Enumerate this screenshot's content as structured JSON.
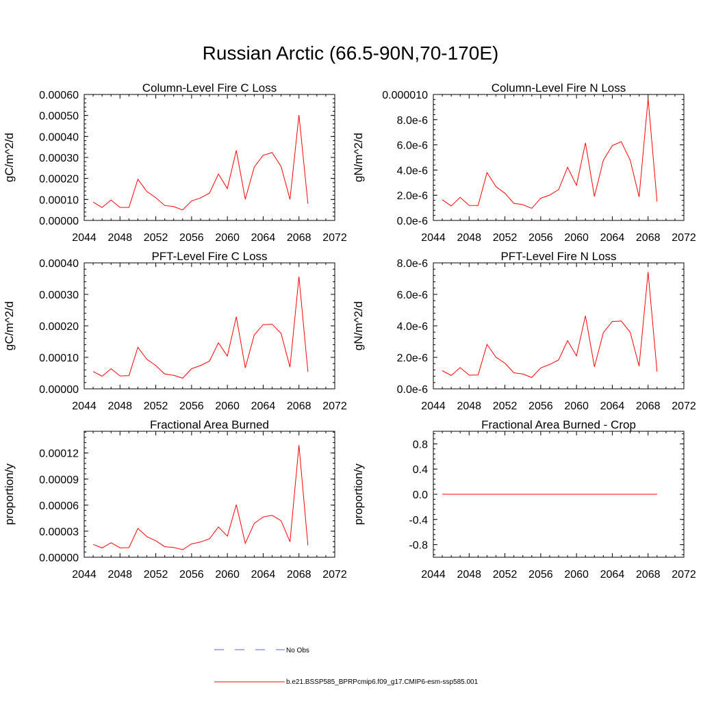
{
  "page": {
    "title": "Russian Arctic (66.5-90N,70-170E)"
  },
  "chart_data": [
    {
      "type": "line",
      "title": "Column-Level Fire C Loss",
      "ylabel": "gC/m^2/d",
      "xlim": [
        2044,
        2072
      ],
      "ylim": [
        0,
        0.0006
      ],
      "xticks": [
        "2044",
        "2048",
        "2052",
        "2056",
        "2060",
        "2064",
        "2068",
        "2072"
      ],
      "yticks": [
        "0.00000",
        "0.00010",
        "0.00020",
        "0.00030",
        "0.00040",
        "0.00050",
        "0.00060"
      ],
      "x": [
        2045,
        2046,
        2047,
        2048,
        2049,
        2050,
        2051,
        2052,
        2053,
        2054,
        2055,
        2056,
        2057,
        2058,
        2059,
        2060,
        2061,
        2062,
        2063,
        2064,
        2065,
        2066,
        2067,
        2068,
        2069
      ],
      "series": [
        {
          "color": "#ff0000",
          "values": [
            8.7e-05,
            6.2e-05,
            9.7e-05,
            6.2e-05,
            6.2e-05,
            0.000196,
            0.000138,
            0.000108,
            7.1e-05,
            6.6e-05,
            5e-05,
            9.3e-05,
            0.000107,
            0.00013,
            0.000221,
            0.000152,
            0.000334,
            0.000101,
            0.000254,
            0.00031,
            0.000323,
            0.000257,
            0.0001,
            0.000502,
            8e-05
          ]
        }
      ]
    },
    {
      "type": "line",
      "title": "Column-Level Fire N Loss",
      "ylabel": "gN/m^2/d",
      "xlim": [
        2044,
        2072
      ],
      "ylim": [
        0,
        1e-05
      ],
      "xticks": [
        "2044",
        "2048",
        "2052",
        "2056",
        "2060",
        "2064",
        "2068",
        "2072"
      ],
      "yticks": [
        "0.0e-6",
        "2.0e-6",
        "4.0e-6",
        "6.0e-6",
        "8.0e-6",
        "0.000010"
      ],
      "x": [
        2045,
        2046,
        2047,
        2048,
        2049,
        2050,
        2051,
        2052,
        2053,
        2054,
        2055,
        2056,
        2057,
        2058,
        2059,
        2060,
        2061,
        2062,
        2063,
        2064,
        2065,
        2066,
        2067,
        2068,
        2069
      ],
      "series": [
        {
          "color": "#ff0000",
          "values": [
            1.64e-06,
            1.15e-06,
            1.83e-06,
            1.19e-06,
            1.18e-06,
            3.8e-06,
            2.68e-06,
            2.16e-06,
            1.36e-06,
            1.25e-06,
            9.6e-07,
            1.76e-06,
            2.01e-06,
            2.45e-06,
            4.22e-06,
            2.79e-06,
            6.16e-06,
            1.9e-06,
            4.78e-06,
            5.94e-06,
            6.25e-06,
            4.78e-06,
            1.87e-06,
            9.68e-06,
            1.49e-06
          ]
        }
      ]
    },
    {
      "type": "line",
      "title": "PFT-Level Fire C Loss",
      "ylabel": "gC/m^2/d",
      "xlim": [
        2044,
        2072
      ],
      "ylim": [
        0,
        0.0004
      ],
      "xticks": [
        "2044",
        "2048",
        "2052",
        "2056",
        "2060",
        "2064",
        "2068",
        "2072"
      ],
      "yticks": [
        "0.00000",
        "0.00010",
        "0.00020",
        "0.00030",
        "0.00040"
      ],
      "x": [
        2045,
        2046,
        2047,
        2048,
        2049,
        2050,
        2051,
        2052,
        2053,
        2054,
        2055,
        2056,
        2057,
        2058,
        2059,
        2060,
        2061,
        2062,
        2063,
        2064,
        2065,
        2066,
        2067,
        2068,
        2069
      ],
      "series": [
        {
          "color": "#ff0000",
          "values": [
            5.5e-05,
            4e-05,
            6.4e-05,
            4.1e-05,
            4.2e-05,
            0.000132,
            9.4e-05,
            7.4e-05,
            4.7e-05,
            4.3e-05,
            3.4e-05,
            6.4e-05,
            7.4e-05,
            8.8e-05,
            0.000146,
            0.000104,
            0.000229,
            6.7e-05,
            0.000171,
            0.000204,
            0.000205,
            0.000176,
            6.9e-05,
            0.000356,
            5.4e-05
          ]
        }
      ]
    },
    {
      "type": "line",
      "title": "PFT-Level Fire N Loss",
      "ylabel": "gN/m^2/d",
      "xlim": [
        2044,
        2072
      ],
      "ylim": [
        0,
        8e-06
      ],
      "xticks": [
        "2044",
        "2048",
        "2052",
        "2056",
        "2060",
        "2064",
        "2068",
        "2072"
      ],
      "yticks": [
        "0.0e-6",
        "2.0e-6",
        "4.0e-6",
        "6.0e-6",
        "8.0e-6"
      ],
      "x": [
        2045,
        2046,
        2047,
        2048,
        2049,
        2050,
        2051,
        2052,
        2053,
        2054,
        2055,
        2056,
        2057,
        2058,
        2059,
        2060,
        2061,
        2062,
        2063,
        2064,
        2065,
        2066,
        2067,
        2068,
        2069
      ],
      "series": [
        {
          "color": "#ff0000",
          "values": [
            1.15e-06,
            8.5e-07,
            1.35e-06,
            8.7e-07,
            8.8e-07,
            2.82e-06,
            2.01e-06,
            1.63e-06,
            1.02e-06,
            9.4e-07,
            7.2e-07,
            1.33e-06,
            1.55e-06,
            1.84e-06,
            3.06e-06,
            2.09e-06,
            4.64e-06,
            1.4e-06,
            3.57e-06,
            4.28e-06,
            4.31e-06,
            3.59e-06,
            1.44e-06,
            7.42e-06,
            1.09e-06
          ]
        }
      ]
    },
    {
      "type": "line",
      "title": "Fractional Area Burned",
      "ylabel": "proportion/y",
      "xlim": [
        2044,
        2072
      ],
      "ylim": [
        0,
        0.000145
      ],
      "xticks": [
        "2044",
        "2048",
        "2052",
        "2056",
        "2060",
        "2064",
        "2068",
        "2072"
      ],
      "yticks": [
        "0.00000",
        "0.00003",
        "0.00006",
        "0.00009",
        "0.00012"
      ],
      "x": [
        2045,
        2046,
        2047,
        2048,
        2049,
        2050,
        2051,
        2052,
        2053,
        2054,
        2055,
        2056,
        2057,
        2058,
        2059,
        2060,
        2061,
        2062,
        2063,
        2064,
        2065,
        2066,
        2067,
        2068,
        2069
      ],
      "series": [
        {
          "color": "#ff0000",
          "values": [
            1.47e-05,
            1.07e-05,
            1.67e-05,
            1.09e-05,
            1.1e-05,
            3.32e-05,
            2.38e-05,
            1.9e-05,
            1.21e-05,
            1.13e-05,
            8.7e-06,
            1.54e-05,
            1.75e-05,
            2.12e-05,
            3.48e-05,
            2.43e-05,
            6.05e-05,
            1.6e-05,
            3.89e-05,
            4.63e-05,
            4.82e-05,
            4.2e-05,
            1.78e-05,
            0.000129,
            1.38e-05
          ]
        }
      ]
    },
    {
      "type": "line",
      "title": "Fractional Area Burned - Crop",
      "ylabel": "proportion/y",
      "xlim": [
        2044,
        2072
      ],
      "ylim": [
        -1.0,
        1.0
      ],
      "xticks": [
        "2044",
        "2048",
        "2052",
        "2056",
        "2060",
        "2064",
        "2068",
        "2072"
      ],
      "yticks": [
        "-0.8",
        "-0.4",
        "0.0",
        "0.4",
        "0.8"
      ],
      "x": [
        2045,
        2046,
        2047,
        2048,
        2049,
        2050,
        2051,
        2052,
        2053,
        2054,
        2055,
        2056,
        2057,
        2058,
        2059,
        2060,
        2061,
        2062,
        2063,
        2064,
        2065,
        2066,
        2067,
        2068,
        2069
      ],
      "series": [
        {
          "color": "#ff0000",
          "values": [
            0,
            0,
            0,
            0,
            0,
            0,
            0,
            0,
            0,
            0,
            0,
            0,
            0,
            0,
            0,
            0,
            0,
            0,
            0,
            0,
            0,
            0,
            0,
            0,
            0
          ]
        }
      ]
    }
  ],
  "legend": {
    "items": [
      {
        "label": "No Obs",
        "color": "#5a5aff",
        "style": "dashed"
      },
      {
        "label": "b.e21.BSSP585_BPRPcmip6.f09_g17.CMIP6-esm-ssp585.001",
        "color": "#ff0000",
        "style": "solid"
      }
    ]
  }
}
